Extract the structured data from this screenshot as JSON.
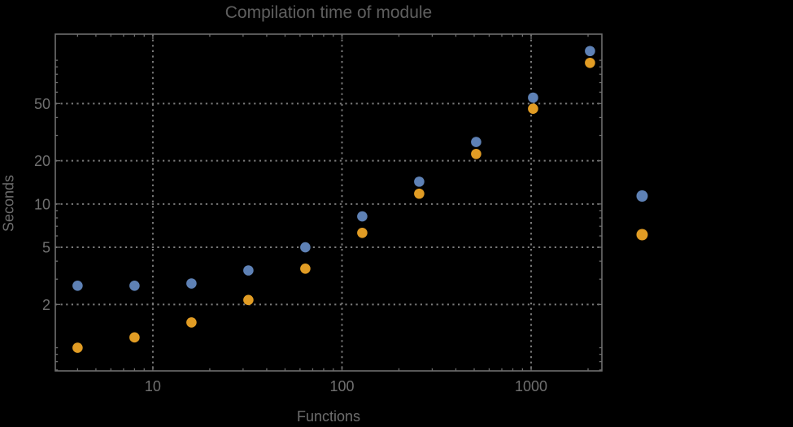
{
  "window": {
    "background": "#000000"
  },
  "chart_data": {
    "type": "scatter",
    "scale": "log-log",
    "title": "Compilation time of module",
    "xlabel": "Functions",
    "ylabel": "Seconds",
    "x": [
      4,
      8,
      16,
      32,
      64,
      128,
      256,
      512,
      1024,
      2048
    ],
    "series": [
      {
        "name": "blue",
        "color": "#5e81b5",
        "values": [
          2.7,
          2.7,
          2.8,
          3.45,
          5.0,
          8.2,
          14.3,
          27,
          55,
          116
        ]
      },
      {
        "name": "orange",
        "color": "#e19c24",
        "values": [
          1.0,
          1.18,
          1.5,
          2.15,
          3.55,
          6.3,
          11.8,
          22.3,
          46,
          96
        ]
      }
    ],
    "xlim": [
      3.05,
      2366
    ],
    "ylim": [
      0.69,
      152
    ],
    "x_ticks": {
      "major": [
        10,
        100,
        1000
      ],
      "labels": [
        "10",
        "100",
        "1000"
      ]
    },
    "y_ticks": {
      "major": [
        2,
        5,
        10,
        20,
        50
      ],
      "labels": [
        "2",
        "5",
        "10",
        "20",
        "50"
      ]
    },
    "grid": {
      "style": "dotted",
      "x_at": [
        10,
        100,
        1000
      ],
      "y_at": [
        2,
        5,
        10,
        20,
        50
      ]
    },
    "legend": {
      "position": "outside-right",
      "labels_visible": false,
      "markers": [
        {
          "series": "blue",
          "color": "#5e81b5"
        },
        {
          "series": "orange",
          "color": "#e19c24"
        }
      ]
    },
    "colors": {
      "background": "#000000",
      "frame": "#6e6e6e",
      "grid": "#7a7a7a",
      "tick_label": "#707070",
      "axis_label": "#6d6d6d",
      "title": "#5f5f5f"
    }
  }
}
